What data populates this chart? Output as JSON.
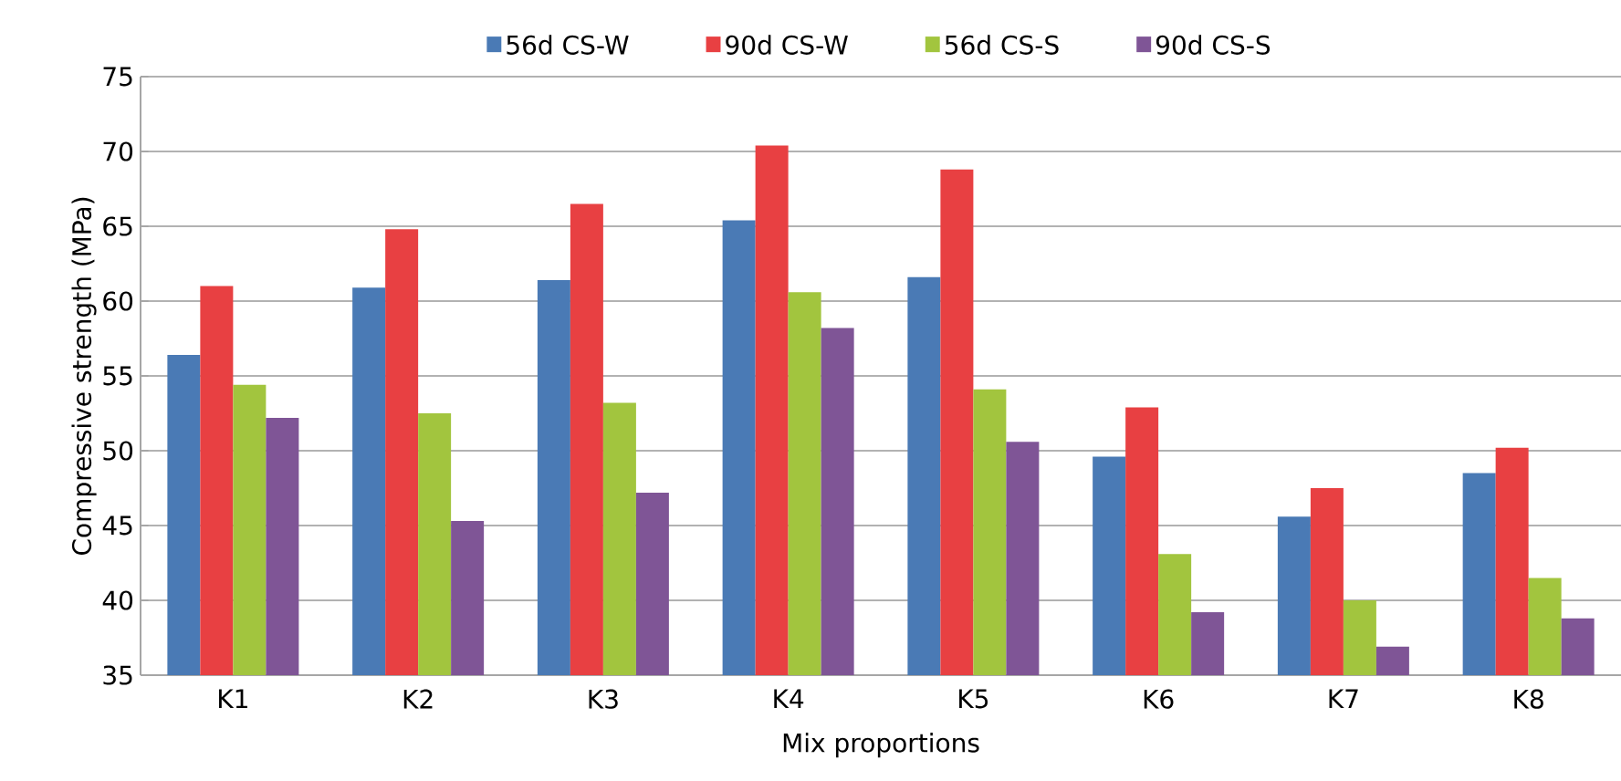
{
  "chart_data": {
    "type": "bar",
    "xlabel": "Mix proportions",
    "ylabel": "Compressive strength (MPa)",
    "categories": [
      "K1",
      "K2",
      "K3",
      "K4",
      "K5",
      "K6",
      "K7",
      "K8"
    ],
    "series": [
      {
        "name": "56d CS-W",
        "color": "#4a7ab5",
        "values": [
          56.4,
          60.9,
          61.4,
          65.4,
          61.6,
          49.6,
          45.6,
          48.5
        ]
      },
      {
        "name": "90d CS-W",
        "color": "#e84042",
        "values": [
          61.0,
          64.8,
          66.5,
          70.4,
          68.8,
          52.9,
          47.5,
          50.2
        ]
      },
      {
        "name": "56d CS-S",
        "color": "#a2c53e",
        "values": [
          54.4,
          52.5,
          53.2,
          60.6,
          54.1,
          43.1,
          40.0,
          41.5
        ]
      },
      {
        "name": "90d  CS-S",
        "color": "#7f5596",
        "values": [
          52.2,
          45.3,
          47.2,
          58.2,
          50.6,
          39.2,
          36.9,
          38.8
        ]
      }
    ],
    "ylim": [
      35,
      75
    ],
    "yticks": [
      35,
      40,
      45,
      50,
      55,
      60,
      65,
      70,
      75
    ],
    "grid": "y",
    "legend": "top"
  }
}
